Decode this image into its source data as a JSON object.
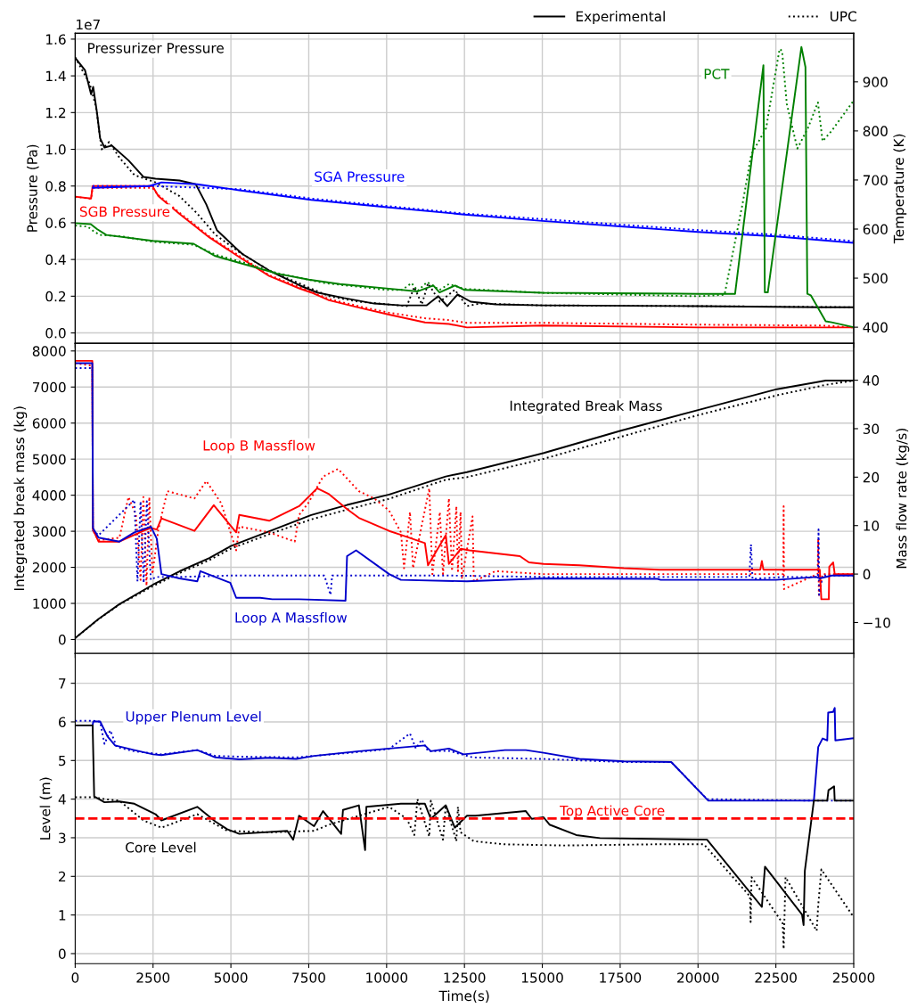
{
  "chart_data": [
    {
      "type": "line",
      "ylabel": "Pressure (Pa)",
      "y2label": "Temperature (K)",
      "xlim": [
        0,
        25000
      ],
      "xticks": [
        0,
        2500,
        5000,
        7500,
        10000,
        12500,
        15000,
        17500,
        20000,
        22500,
        25000
      ],
      "ylim": [
        -0.057,
        1.632
      ],
      "yticks": [
        {
          "value": 0,
          "label": "0.0"
        },
        0.2,
        0.4,
        0.6,
        0.8,
        {
          "value": 1,
          "label": "1.0"
        },
        1.2,
        1.4,
        1.6
      ],
      "y2lim": [
        367,
        999
      ],
      "y2ticks": [
        400,
        500,
        600,
        700,
        800,
        900
      ],
      "grid": true,
      "legend": "top right",
      "tick_labels": "y",
      "annotations": [
        "1e7",
        {
          "text": "Pressurizer Pressure",
          "x": 0,
          "y": 1.498
        },
        {
          "text": "SGB Pressure",
          "x": 0,
          "y": 0.742
        },
        {
          "text": "SGA Pressure",
          "x": 10080,
          "y": 0.683
        },
        {
          "text": "PCT",
          "x": 22100,
          "y": 1.458
        }
      ],
      "series": [
        {
          "name": "Experimental",
          "color": "#000000",
          "line_style": "solid",
          "x": [
            0,
            317,
            510,
            577,
            700,
            800,
            940,
            1180,
            1710,
            2190,
            2580,
            3350,
            3870,
            4210,
            4550,
            5170,
            5370,
            6230,
            7190,
            7770,
            8630,
            9600,
            10460,
            11280,
            11660,
            11950,
            12280,
            12700,
            13500,
            15000,
            20000,
            24000,
            25000
          ],
          "values": [
            1.498,
            1.43,
            1.3,
            1.34,
            1.2,
            1.06,
            1.01,
            1.02,
            0.94,
            0.85,
            0.84,
            0.83,
            0.81,
            0.7,
            0.56,
            0.46,
            0.43,
            0.34,
            0.26,
            0.22,
            0.19,
            0.16,
            0.15,
            0.15,
            0.2,
            0.146,
            0.21,
            0.17,
            0.156,
            0.15,
            0.146,
            0.14,
            0.14
          ]
        },
        {
          "name": "UPC",
          "color": "#000000",
          "line_style": "dotted",
          "x": [
            0,
            460,
            670,
            850,
            1090,
            1420,
            1900,
            2580,
            3350,
            3920,
            4500,
            5270,
            6230,
            7190,
            8150,
            9110,
            10080,
            10650,
            10890,
            11130,
            11330,
            11710,
            12190,
            12580,
            13000,
            15000,
            20000,
            25000
          ],
          "values": [
            1.5,
            1.36,
            1.23,
            1.0,
            1.04,
            0.955,
            0.86,
            0.82,
            0.745,
            0.65,
            0.535,
            0.44,
            0.34,
            0.27,
            0.2,
            0.17,
            0.155,
            0.146,
            0.25,
            0.155,
            0.27,
            0.17,
            0.235,
            0.146,
            0.16,
            0.15,
            0.146,
            0.14
          ]
        },
        {
          "color": "#ff0000",
          "line_style": "solid",
          "x": [
            0,
            510,
            560,
            2480,
            2670,
            3350,
            4310,
            5270,
            6230,
            7190,
            7580,
            8150,
            9110,
            10080,
            11230,
            12000,
            12580,
            15000,
            20000,
            25000
          ],
          "values": [
            0.742,
            0.732,
            0.8,
            0.8,
            0.745,
            0.648,
            0.52,
            0.413,
            0.31,
            0.243,
            0.22,
            0.178,
            0.138,
            0.1,
            0.057,
            0.049,
            0.03,
            0.04,
            0.03,
            0.03
          ]
        },
        {
          "color": "#ff0000",
          "line_style": "dotted",
          "x": [
            0,
            510,
            560,
            2480,
            2670,
            3350,
            4310,
            5270,
            6230,
            7190,
            8150,
            9110,
            10080,
            11230,
            12000,
            12580,
            15000,
            20000,
            24000,
            25000
          ],
          "values": [
            0.742,
            0.73,
            0.79,
            0.79,
            0.75,
            0.655,
            0.525,
            0.42,
            0.315,
            0.25,
            0.185,
            0.145,
            0.11,
            0.08,
            0.07,
            0.055,
            0.055,
            0.045,
            0.04,
            0.03
          ]
        },
        {
          "color": "#0000ff",
          "line_style": "solid",
          "x": [
            560,
            2380,
            2770,
            3920,
            5270,
            7580,
            10080,
            12500,
            15000,
            17500,
            20000,
            22500,
            25000
          ],
          "values": [
            0.79,
            0.8,
            0.82,
            0.81,
            0.777,
            0.725,
            0.683,
            0.645,
            0.61,
            0.58,
            0.55,
            0.526,
            0.49
          ]
        },
        {
          "color": "#0000ff",
          "line_style": "dotted",
          "x": [
            560,
            2480,
            5270,
            7580,
            10080,
            12500,
            15000,
            17500,
            20000,
            22500,
            25000
          ],
          "values": [
            0.8,
            0.8,
            0.783,
            0.732,
            0.69,
            0.65,
            0.62,
            0.59,
            0.56,
            0.535,
            0.5
          ]
        },
        {
          "color": "#008000",
          "line_style": "solid",
          "axis": "y2",
          "x": [
            0,
            500,
            700,
            1000,
            2500,
            3800,
            4500,
            5000,
            6500,
            7500,
            8500,
            10000,
            11000,
            11500,
            11700,
            12200,
            12500,
            15000,
            20000,
            21190,
            22100,
            22145,
            22240,
            23320,
            23450,
            23510,
            23620,
            24100,
            24290,
            25000
          ],
          "values": [
            612,
            610,
            600,
            588,
            576,
            570,
            545,
            536,
            509,
            497,
            488,
            479,
            473,
            485,
            471,
            485,
            476,
            470,
            468,
            468,
            934,
            471,
            471,
            971,
            930,
            468,
            465,
            412,
            410,
            400
          ]
        },
        {
          "color": "#008000",
          "line_style": "dotted",
          "axis": "y2",
          "x": [
            0,
            400,
            600,
            800,
            1500,
            2500,
            3800,
            4500,
            5500,
            6500,
            8000,
            10000,
            10500,
            10800,
            11000,
            11300,
            11700,
            12000,
            12500,
            15000,
            20000,
            20850,
            21420,
            21710,
            22190,
            22280,
            22620,
            22700,
            22850,
            23190,
            23530,
            23850,
            24000,
            24290,
            25000
          ],
          "values": [
            607,
            605,
            595,
            588,
            585,
            574,
            568,
            548,
            530,
            510,
            490,
            476,
            476,
            490,
            474,
            492,
            476,
            488,
            478,
            470,
            463,
            466,
            648,
            752,
            806,
            842,
            967,
            963,
            855,
            764,
            806,
            858,
            779,
            800,
            862
          ]
        }
      ]
    },
    {
      "type": "line",
      "ylabel": "Integrated break mass (kg)",
      "y2label": "Mass flow rate (kg/s)",
      "xlim": [
        0,
        25000
      ],
      "xticks": [
        0,
        2500,
        5000,
        7500,
        10000,
        12500,
        15000,
        17500,
        20000,
        22500,
        25000
      ],
      "ylim": [
        -390,
        8210
      ],
      "yticks": [
        0,
        1000,
        2000,
        3000,
        4000,
        5000,
        6000,
        7000,
        8000
      ],
      "y2lim": [
        -16.4,
        47.6
      ],
      "y2ticks": [
        {
          "value": -10,
          "label": "−10"
        },
        0,
        10,
        20,
        30,
        40
      ],
      "grid": true,
      "tick_labels": "y",
      "series": [
        {
          "color": "#ff0000",
          "line_style": "dotted",
          "axis": "y2",
          "x": [
            0,
            550,
            570,
            750,
            1420,
            1710,
            1950,
            2100,
            2190,
            2290,
            2380,
            2480,
            2670,
            2960,
            3830,
            4210,
            4690,
            5170,
            5270,
            6230,
            7050,
            7190,
            7480,
            7960,
            8440,
            9110,
            9600,
            10080,
            10460,
            10560,
            10750,
            10850,
            11370,
            11470,
            11710,
            11810,
            12000,
            12100,
            12240,
            12290,
            12375,
            12420,
            12760,
            12800,
            13500,
            15000,
            20000,
            22740,
            22750,
            22760,
            23840,
            23860,
            23880,
            24000,
            25000
          ],
          "values": [
            43.5,
            43,
            9,
            7,
            7.5,
            15.9,
            12.2,
            -1.2,
            15.9,
            -2.4,
            15.9,
            0,
            9.2,
            17.1,
            15.6,
            19.2,
            14.6,
            4.9,
            9.8,
            8.6,
            6.7,
            12.2,
            14.6,
            20.1,
            21.7,
            17.1,
            15.6,
            13.1,
            8.6,
            1.2,
            12.8,
            1.2,
            17.7,
            0,
            12.8,
            0,
            15.6,
            0.6,
            14,
            0.6,
            12.8,
            -1,
            11.9,
            -1.5,
            0.6,
            0,
            0,
            0,
            14,
            -3.1,
            0,
            7.3,
            -4.3,
            0,
            0
          ]
        },
        {
          "color": "#0000cc",
          "line_style": "dotted",
          "axis": "y2",
          "x": [
            0,
            550,
            570,
            750,
            1900,
            2000,
            2100,
            2200,
            2300,
            2430,
            2600,
            3350,
            5000,
            8000,
            8200,
            8250,
            12000,
            15000,
            21650,
            21700,
            21750,
            22750,
            23850,
            23870,
            23890,
            24000,
            25000
          ],
          "values": [
            42.5,
            42.5,
            9,
            8,
            15.3,
            -1.5,
            15,
            -1.8,
            15,
            -1.2,
            -0.6,
            -0.6,
            -0.3,
            -0.3,
            -4.3,
            -0.3,
            -0.3,
            -0.6,
            -0.6,
            6.1,
            -1,
            -0.6,
            -0.6,
            9.2,
            -4.3,
            -0.3,
            -0.3
          ]
        },
        {
          "name": "Loop B Massflow",
          "color": "#ff0000",
          "line_style": "solid",
          "axis": "y2",
          "x": [
            0,
            550,
            570,
            750,
            1420,
            2190,
            2430,
            2620,
            2770,
            3830,
            4450,
            5170,
            5270,
            6230,
            7190,
            7770,
            8150,
            8730,
            9110,
            10080,
            10460,
            11230,
            11330,
            11900,
            12000,
            12380,
            12660,
            14280,
            14570,
            15040,
            16190,
            17620,
            18760,
            22000,
            22050,
            22100,
            23910,
            23960,
            24200,
            24215,
            24340,
            24390,
            25000
          ],
          "values": [
            44,
            44,
            9.2,
            6.7,
            6.7,
            8.9,
            9.5,
            9.2,
            11.5,
            8.9,
            14.2,
            8.6,
            12.2,
            11,
            14,
            17.7,
            16.5,
            13.4,
            11.6,
            8.9,
            8.1,
            6.4,
            1.8,
            8,
            2.1,
            5.2,
            4.9,
            3.7,
            2.4,
            2.1,
            1.8,
            1.2,
            0.9,
            0.9,
            2.7,
            0.9,
            0.9,
            -5.2,
            -5.2,
            1.5,
            2.4,
            0,
            0
          ]
        },
        {
          "name": "Loop A Massflow",
          "color": "#0000cc",
          "line_style": "solid",
          "axis": "y2",
          "x": [
            0,
            550,
            570,
            750,
            1420,
            1900,
            2430,
            2620,
            2770,
            3350,
            3920,
            4020,
            4980,
            5170,
            5940,
            6330,
            7190,
            8680,
            8730,
            9020,
            10080,
            10460,
            12580,
            15000,
            18700,
            18800,
            22500,
            23800,
            23900,
            24300,
            25000
          ],
          "values": [
            43.5,
            43.5,
            9.5,
            7.5,
            6.7,
            8.6,
            9.8,
            7.3,
            0,
            -0.9,
            -1.5,
            0.6,
            -1.8,
            -4.9,
            -4.9,
            -5.2,
            -5.2,
            -5.5,
            3.7,
            4.9,
            0,
            -1.2,
            -1.5,
            -0.9,
            -1,
            -1.2,
            -1.2,
            -0.6,
            -0.9,
            -0.3,
            -0.3
          ]
        },
        {
          "name": "Integrated Break Mass",
          "color": "#000000",
          "line_style": "solid",
          "x": [
            0,
            750,
            1420,
            2500,
            3350,
            4310,
            5000,
            6230,
            7580,
            8730,
            10080,
            11900,
            12580,
            15050,
            17520,
            20000,
            22530,
            24100,
            25000
          ],
          "values": [
            40,
            570,
            980,
            1520,
            1890,
            2260,
            2590,
            3000,
            3450,
            3730,
            4020,
            4520,
            4640,
            5170,
            5790,
            6360,
            6940,
            7180,
            7180
          ]
        },
        {
          "color": "#000000",
          "line_style": "dotted",
          "x": [
            0,
            750,
            1420,
            2500,
            3350,
            4310,
            5000,
            6230,
            7580,
            8730,
            10080,
            11900,
            12580,
            15050,
            17520,
            20000,
            22530,
            24100,
            25000
          ],
          "values": [
            40,
            560,
            970,
            1480,
            1840,
            2200,
            2520,
            2920,
            3330,
            3600,
            3900,
            4430,
            4500,
            5010,
            5620,
            6220,
            6770,
            7060,
            7180
          ]
        }
      ]
    },
    {
      "type": "line",
      "ylabel": "Level (m)",
      "xlabel": "Time(s)",
      "xlim": [
        0,
        25000
      ],
      "xticks": [
        0,
        2500,
        5000,
        7500,
        10000,
        12500,
        15000,
        17500,
        20000,
        22500,
        25000
      ],
      "ylim": [
        -0.26,
        7.77
      ],
      "yticks": [
        0,
        1,
        2,
        3,
        4,
        5,
        6,
        7
      ],
      "grid": true,
      "ref_lines": [
        {
          "axis": "y",
          "value": 3.5,
          "label": "Top Active Core",
          "color": "#ff0000",
          "line_style": "dashed"
        }
      ],
      "series": [
        {
          "name": "Upper Plenum Level",
          "color": "#0000cc",
          "line_style": "solid",
          "x": [
            0,
            560,
            580,
            800,
            1040,
            1280,
            1900,
            2500,
            2770,
            3920,
            4500,
            5270,
            6230,
            7100,
            7670,
            9110,
            10080,
            11230,
            11420,
            12000,
            12470,
            13800,
            14470,
            15040,
            16190,
            17620,
            19140,
            20330,
            23720,
            23860,
            24000,
            24150,
            24180,
            24340,
            24390,
            24410,
            25000
          ],
          "values": [
            5.91,
            5.91,
            6.01,
            6.01,
            5.62,
            5.39,
            5.27,
            5.16,
            5.14,
            5.27,
            5.08,
            5.03,
            5.07,
            5.04,
            5.12,
            5.24,
            5.31,
            5.39,
            5.24,
            5.31,
            5.16,
            5.27,
            5.27,
            5.2,
            5.04,
            4.98,
            4.96,
            3.96,
            3.96,
            5.35,
            5.57,
            5.52,
            6.24,
            6.26,
            6.36,
            5.52,
            5.58
          ]
        },
        {
          "color": "#0000cc",
          "line_style": "dotted",
          "x": [
            0,
            580,
            800,
            940,
            1130,
            1330,
            1900,
            2770,
            3920,
            4500,
            5270,
            7100,
            9110,
            10080,
            10750,
            10940,
            11130,
            11330,
            12000,
            12760,
            15040,
            17620,
            19140,
            20290,
            23720,
            25000
          ],
          "values": [
            6.03,
            6.03,
            6,
            5.43,
            5.78,
            5.35,
            5.24,
            5.16,
            5.27,
            5.12,
            5.1,
            5.08,
            5.22,
            5.3,
            5.7,
            5.31,
            5.54,
            5.24,
            5.25,
            5.08,
            5.04,
            4.96,
            4.96,
            4,
            3.96,
            3.96
          ]
        },
        {
          "name": "Core Level",
          "color": "#000000",
          "line_style": "solid",
          "x": [
            0,
            560,
            610,
            940,
            1420,
            1900,
            2580,
            2770,
            3920,
            4500,
            4880,
            5270,
            6810,
            7000,
            7190,
            7670,
            7960,
            8540,
            8600,
            9110,
            9310,
            9350,
            10460,
            11230,
            11420,
            11900,
            12190,
            12580,
            12850,
            14470,
            14660,
            15040,
            15230,
            16090,
            16850,
            20290,
            22050,
            22150,
            23340,
            23390,
            23430,
            23720,
            24150,
            24190,
            24370,
            24390,
            25000
          ],
          "values": [
            5.91,
            5.91,
            4.07,
            3.92,
            3.94,
            3.88,
            3.61,
            3.45,
            3.8,
            3.42,
            3.22,
            3.1,
            3.18,
            2.95,
            3.57,
            3.3,
            3.69,
            3.1,
            3.72,
            3.84,
            2.68,
            3.8,
            3.88,
            3.88,
            3.49,
            3.84,
            3.26,
            3.57,
            3.57,
            3.69,
            3.49,
            3.53,
            3.34,
            3.07,
            2.99,
            2.95,
            1.21,
            2.25,
            1.01,
            0.74,
            2.14,
            3.96,
            3.96,
            4.23,
            4.33,
            3.96,
            3.96
          ]
        },
        {
          "color": "#000000",
          "line_style": "dotted",
          "x": [
            0,
            580,
            940,
            1420,
            2190,
            2770,
            3920,
            4880,
            6230,
            7670,
            8150,
            10080,
            10650,
            10890,
            10990,
            11370,
            11420,
            11810,
            11900,
            12240,
            12290,
            12375,
            12800,
            13800,
            15710,
            18570,
            20190,
            21670,
            21690,
            21720,
            22720,
            22750,
            22810,
            23810,
            23860,
            23960,
            25000
          ],
          "values": [
            4.05,
            4.05,
            4,
            3.96,
            3.45,
            3.26,
            3.61,
            3.18,
            3.14,
            3.18,
            3.34,
            3.8,
            3.49,
            3.07,
            4,
            3.03,
            3.96,
            2.95,
            3.84,
            2.91,
            3.8,
            3.14,
            2.91,
            2.83,
            2.8,
            2.83,
            2.83,
            1.48,
            0.82,
            1.98,
            0.78,
            0.12,
            1.98,
            0.59,
            1.25,
            2.18,
            0.94
          ]
        }
      ]
    }
  ]
}
